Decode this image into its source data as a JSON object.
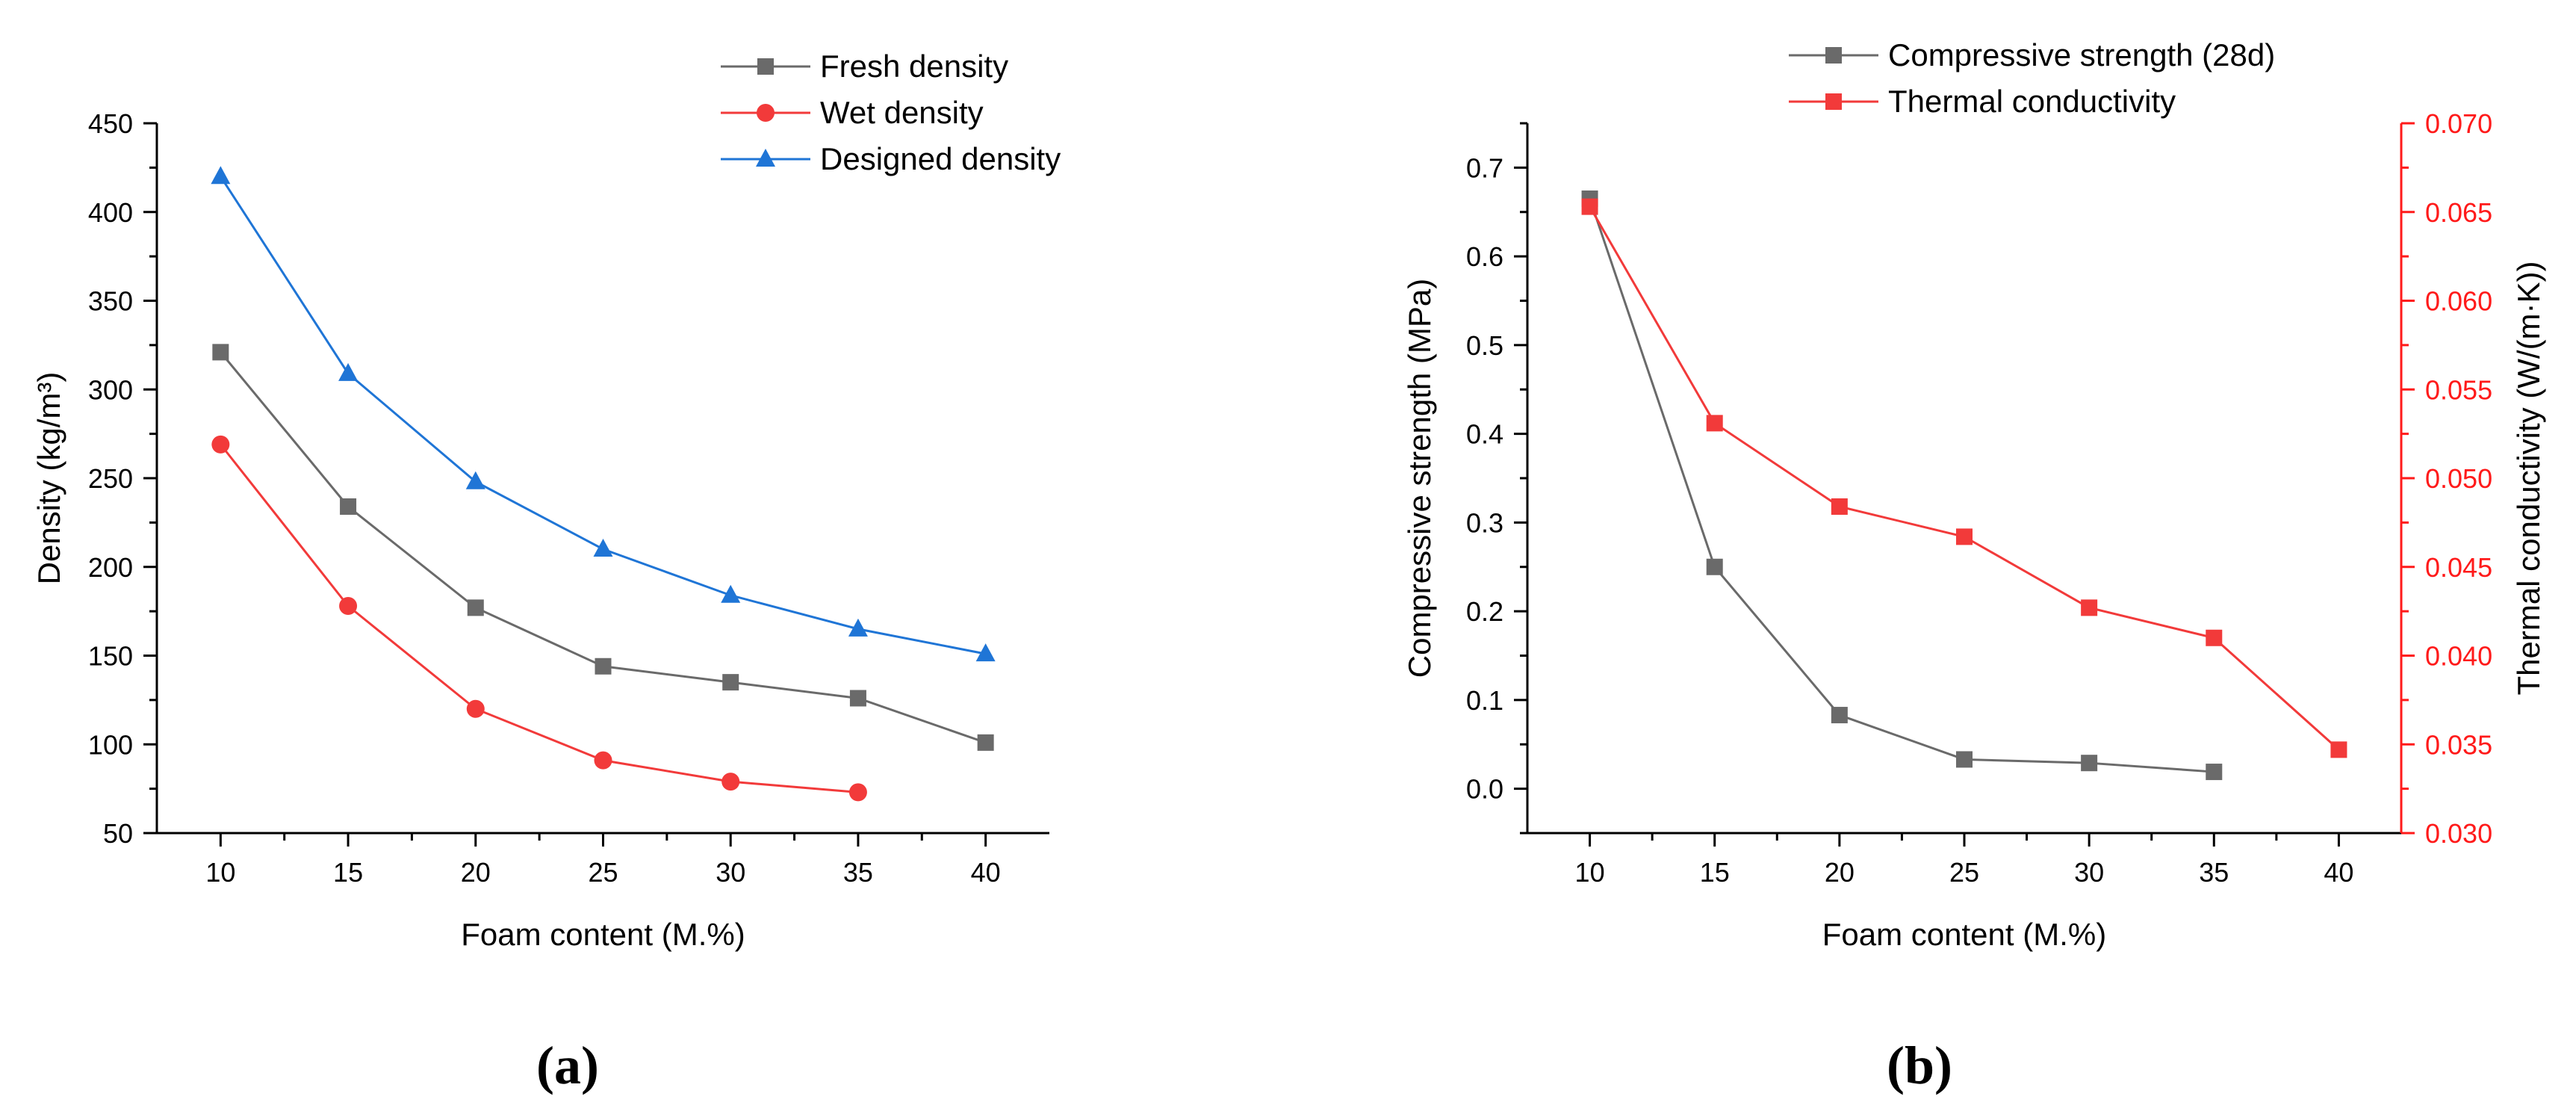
{
  "colors": {
    "axis": "#000000",
    "gray": "#6a6a6a",
    "red": "#f23a3a",
    "blue": "#1f75d6",
    "right_axis": "#ff1a1a"
  },
  "panels": [
    {
      "label": "(a)"
    },
    {
      "label": "(b)"
    }
  ],
  "chart_data": [
    {
      "type": "line",
      "panel": "(a)",
      "xlabel": "Foam content (M.%)",
      "ylabel": "Density (kg/m³)",
      "x": [
        10,
        15,
        20,
        25,
        30,
        35,
        40
      ],
      "xlim": [
        7.5,
        42.5
      ],
      "ylim": [
        50,
        450
      ],
      "xticks": [
        10,
        15,
        20,
        25,
        30,
        35,
        40
      ],
      "yticks": [
        50,
        100,
        150,
        200,
        250,
        300,
        350,
        400,
        450
      ],
      "grid": false,
      "legend": "top-right",
      "series": [
        {
          "name": "Fresh density",
          "marker": "square",
          "color": "#6a6a6a",
          "values": [
            321,
            234,
            177,
            144,
            135,
            126,
            101
          ]
        },
        {
          "name": "Wet density",
          "marker": "circle",
          "color": "#f23a3a",
          "values": [
            269,
            178,
            120,
            91,
            79,
            73,
            null
          ]
        },
        {
          "name": "Designed density",
          "marker": "triangle",
          "color": "#1f75d6",
          "values": [
            420,
            309,
            248,
            210,
            184,
            165,
            151
          ]
        }
      ]
    },
    {
      "type": "line",
      "panel": "(b)",
      "xlabel": "Foam content (M.%)",
      "ylabel": "Compressive strength (MPa)",
      "ylabel_right": "Thermal conductivity (W/(m·K))",
      "x": [
        10,
        15,
        20,
        25,
        30,
        35,
        40
      ],
      "xlim": [
        7.5,
        42.5
      ],
      "ylim": [
        -0.05,
        0.75
      ],
      "ylim_right": [
        0.03,
        0.07
      ],
      "xticks": [
        10,
        15,
        20,
        25,
        30,
        35,
        40
      ],
      "yticks": [
        0.0,
        0.1,
        0.2,
        0.3,
        0.4,
        0.5,
        0.6,
        0.7
      ],
      "yticks_right": [
        0.03,
        0.035,
        0.04,
        0.045,
        0.05,
        0.055,
        0.06,
        0.065,
        0.07
      ],
      "grid": false,
      "legend": "top",
      "series": [
        {
          "name": "Compressive strength (28d)",
          "axis": "left",
          "marker": "square",
          "color": "#6a6a6a",
          "values": [
            0.665,
            0.25,
            0.083,
            0.033,
            0.029,
            0.019,
            null
          ]
        },
        {
          "name": "Thermal conductivity",
          "axis": "right",
          "marker": "square",
          "color": "#f23a3a",
          "values": [
            0.0653,
            0.0531,
            0.0484,
            0.0467,
            0.0427,
            0.041,
            0.0347
          ]
        }
      ]
    }
  ]
}
